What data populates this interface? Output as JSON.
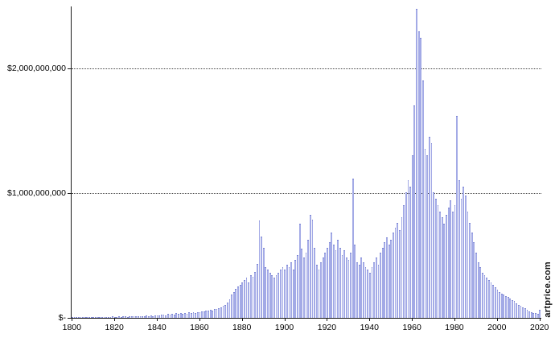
{
  "watermark": "artprice.com",
  "chart_data": {
    "type": "bar",
    "title": "",
    "xlabel": "",
    "ylabel": "",
    "values_unit": "USD millions",
    "year_start": 1800,
    "year_end": 2020,
    "ylim": [
      0,
      2500
    ],
    "grid": "horizontal-dotted",
    "legend": "none",
    "bar_color": "#a3aae6",
    "bar_edge_color": "#7d86d4",
    "y_ticks": [
      {
        "value": 2000,
        "label": "$2,000,000,000"
      },
      {
        "value": 1000,
        "label": "$1,000,000,000"
      },
      {
        "value": 0,
        "label": "$-"
      }
    ],
    "x_ticks": [
      1800,
      1820,
      1840,
      1860,
      1880,
      1900,
      1920,
      1940,
      1960,
      1980,
      2000,
      2020
    ],
    "values": [
      6,
      5,
      6,
      5,
      7,
      6,
      5,
      7,
      6,
      8,
      7,
      6,
      8,
      7,
      9,
      8,
      7,
      9,
      8,
      10,
      9,
      8,
      10,
      9,
      11,
      10,
      9,
      12,
      14,
      12,
      12,
      14,
      13,
      16,
      14,
      17,
      15,
      18,
      16,
      20,
      22,
      20,
      25,
      28,
      22,
      30,
      26,
      34,
      28,
      36,
      32,
      38,
      30,
      40,
      34,
      44,
      38,
      48,
      40,
      46,
      48,
      54,
      50,
      58,
      56,
      64,
      60,
      70,
      74,
      80,
      85,
      95,
      105,
      125,
      150,
      190,
      210,
      230,
      250,
      265,
      285,
      305,
      325,
      285,
      345,
      330,
      370,
      430,
      780,
      650,
      560,
      410,
      385,
      365,
      345,
      325,
      345,
      365,
      385,
      405,
      385,
      425,
      405,
      445,
      385,
      465,
      505,
      755,
      555,
      485,
      525,
      625,
      825,
      785,
      565,
      425,
      385,
      445,
      485,
      525,
      565,
      605,
      685,
      585,
      545,
      625,
      565,
      505,
      545,
      485,
      465,
      525,
      1120,
      585,
      445,
      425,
      485,
      445,
      405,
      385,
      365,
      405,
      445,
      485,
      425,
      525,
      565,
      605,
      645,
      585,
      625,
      685,
      725,
      765,
      705,
      805,
      905,
      1005,
      1105,
      1055,
      1305,
      1705,
      2480,
      2300,
      2250,
      1905,
      1355,
      1305,
      1455,
      1405,
      1005,
      955,
      905,
      855,
      805,
      755,
      825,
      885,
      945,
      855,
      905,
      1620,
      1105,
      955,
      1055,
      985,
      855,
      765,
      685,
      605,
      525,
      445,
      405,
      365,
      345,
      325,
      305,
      285,
      265,
      245,
      225,
      205,
      195,
      185,
      175,
      165,
      155,
      145,
      135,
      115,
      105,
      95,
      85,
      75,
      65,
      55,
      48,
      42,
      38,
      32,
      65
    ]
  }
}
